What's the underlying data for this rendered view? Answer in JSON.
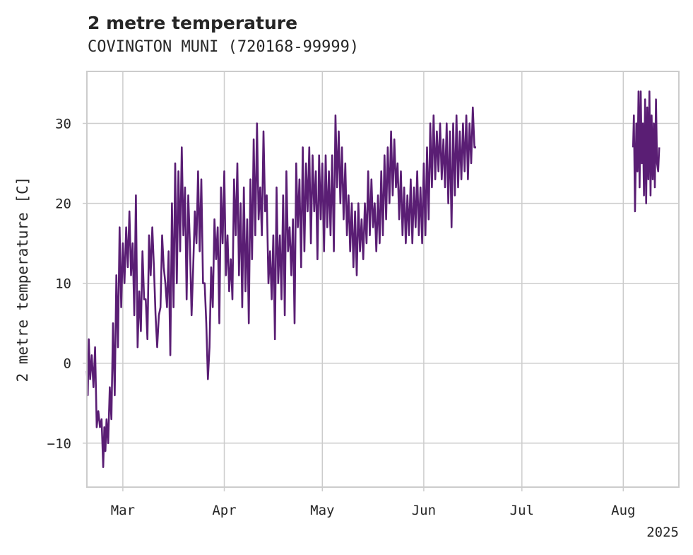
{
  "chart_data": {
    "type": "line",
    "title": "2 metre temperature",
    "subtitle": "COVINGTON MUNI (720168-99999)",
    "ylabel": "2 metre temperature [C]",
    "xlabel": "",
    "x_year_label": "2025",
    "ylim": [
      -15.5,
      36.5
    ],
    "xlim": [
      "2025-02-18",
      "2025-08-18"
    ],
    "grid": true,
    "y_ticks": [
      -10,
      0,
      10,
      20,
      30
    ],
    "x_ticks": [
      {
        "date": "2025-03-01",
        "label": "Mar"
      },
      {
        "date": "2025-04-01",
        "label": "Apr"
      },
      {
        "date": "2025-05-01",
        "label": "May"
      },
      {
        "date": "2025-06-01",
        "label": "Jun"
      },
      {
        "date": "2025-07-01",
        "label": "Jul"
      },
      {
        "date": "2025-08-01",
        "label": "Aug"
      }
    ],
    "color": "#5a1e74",
    "series": [
      {
        "points": [
          [
            "2025-02-18",
            -1
          ],
          [
            "2025-02-18T06",
            -4
          ],
          [
            "2025-02-18T14",
            3
          ],
          [
            "2025-02-19",
            -2
          ],
          [
            "2025-02-19T12",
            1
          ],
          [
            "2025-02-20",
            -3
          ],
          [
            "2025-02-20T12",
            2
          ],
          [
            "2025-02-21",
            -8
          ],
          [
            "2025-02-21T12",
            -6
          ],
          [
            "2025-02-22",
            -8
          ],
          [
            "2025-02-22T12",
            -7
          ],
          [
            "2025-02-23",
            -13
          ],
          [
            "2025-02-23T08",
            -8
          ],
          [
            "2025-02-23T16",
            -11
          ],
          [
            "2025-02-24",
            -7
          ],
          [
            "2025-02-24T12",
            -10
          ],
          [
            "2025-02-25",
            -3
          ],
          [
            "2025-02-25T12",
            -7
          ],
          [
            "2025-02-26",
            5
          ],
          [
            "2025-02-26T12",
            -4
          ],
          [
            "2025-02-27",
            11
          ],
          [
            "2025-02-27T12",
            2
          ],
          [
            "2025-02-28",
            17
          ],
          [
            "2025-02-28T12",
            7
          ],
          [
            "2025-03-01",
            15
          ],
          [
            "2025-03-01T12",
            10
          ],
          [
            "2025-03-02",
            17
          ],
          [
            "2025-03-02T12",
            12
          ],
          [
            "2025-03-03",
            19
          ],
          [
            "2025-03-03T12",
            11
          ],
          [
            "2025-03-04",
            15
          ],
          [
            "2025-03-04T12",
            6
          ],
          [
            "2025-03-05",
            21
          ],
          [
            "2025-03-05T12",
            2
          ],
          [
            "2025-03-06",
            9
          ],
          [
            "2025-03-06T12",
            4
          ],
          [
            "2025-03-07",
            14
          ],
          [
            "2025-03-07T12",
            8
          ],
          [
            "2025-03-08",
            8
          ],
          [
            "2025-03-08T12",
            3
          ],
          [
            "2025-03-09",
            16
          ],
          [
            "2025-03-09T12",
            11
          ],
          [
            "2025-03-10",
            17
          ],
          [
            "2025-03-10T12",
            12
          ],
          [
            "2025-03-11",
            6
          ],
          [
            "2025-03-11T12",
            2
          ],
          [
            "2025-03-12",
            6
          ],
          [
            "2025-03-12T12",
            7
          ],
          [
            "2025-03-13",
            16
          ],
          [
            "2025-03-13T12",
            12
          ],
          [
            "2025-03-14",
            10
          ],
          [
            "2025-03-14T12",
            7
          ],
          [
            "2025-03-15",
            14
          ],
          [
            "2025-03-15T12",
            1
          ],
          [
            "2025-03-16",
            20
          ],
          [
            "2025-03-16T12",
            7
          ],
          [
            "2025-03-17",
            25
          ],
          [
            "2025-03-17T12",
            10
          ],
          [
            "2025-03-18",
            24
          ],
          [
            "2025-03-18T12",
            14
          ],
          [
            "2025-03-19",
            27
          ],
          [
            "2025-03-19T12",
            16
          ],
          [
            "2025-03-20",
            22
          ],
          [
            "2025-03-20T12",
            8
          ],
          [
            "2025-03-21",
            21
          ],
          [
            "2025-03-21T12",
            15
          ],
          [
            "2025-03-22",
            6
          ],
          [
            "2025-03-22T12",
            12
          ],
          [
            "2025-03-23",
            19
          ],
          [
            "2025-03-23T12",
            15
          ],
          [
            "2025-03-24",
            24
          ],
          [
            "2025-03-24T12",
            14
          ],
          [
            "2025-03-25",
            23
          ],
          [
            "2025-03-25T12",
            10
          ],
          [
            "2025-03-26",
            10
          ],
          [
            "2025-03-26T12",
            5
          ],
          [
            "2025-03-27",
            -2
          ],
          [
            "2025-03-27T12",
            2
          ],
          [
            "2025-03-28",
            12
          ],
          [
            "2025-03-28T12",
            7
          ],
          [
            "2025-03-29",
            18
          ],
          [
            "2025-03-29T12",
            13
          ],
          [
            "2025-03-30",
            17
          ],
          [
            "2025-03-30T12",
            5
          ],
          [
            "2025-03-31",
            22
          ],
          [
            "2025-03-31T12",
            15
          ],
          [
            "2025-04-01",
            24
          ],
          [
            "2025-04-01T12",
            11
          ],
          [
            "2025-04-02",
            16
          ],
          [
            "2025-04-02T12",
            9
          ],
          [
            "2025-04-03",
            13
          ],
          [
            "2025-04-03T12",
            8
          ],
          [
            "2025-04-04",
            23
          ],
          [
            "2025-04-04T12",
            16
          ],
          [
            "2025-04-05",
            25
          ],
          [
            "2025-04-05T12",
            11
          ],
          [
            "2025-04-06",
            20
          ],
          [
            "2025-04-06T12",
            7
          ],
          [
            "2025-04-07",
            22
          ],
          [
            "2025-04-07T12",
            9
          ],
          [
            "2025-04-08",
            18
          ],
          [
            "2025-04-08T12",
            5
          ],
          [
            "2025-04-09",
            23
          ],
          [
            "2025-04-09T12",
            13
          ],
          [
            "2025-04-10",
            28
          ],
          [
            "2025-04-10T12",
            16
          ],
          [
            "2025-04-11",
            30
          ],
          [
            "2025-04-11T12",
            18
          ],
          [
            "2025-04-12",
            22
          ],
          [
            "2025-04-12T12",
            16
          ],
          [
            "2025-04-13",
            29
          ],
          [
            "2025-04-13T12",
            19
          ],
          [
            "2025-04-14",
            21
          ],
          [
            "2025-04-14T12",
            10
          ],
          [
            "2025-04-15",
            14
          ],
          [
            "2025-04-15T12",
            8
          ],
          [
            "2025-04-16",
            16
          ],
          [
            "2025-04-16T12",
            3
          ],
          [
            "2025-04-17",
            22
          ],
          [
            "2025-04-17T12",
            10
          ],
          [
            "2025-04-18",
            16
          ],
          [
            "2025-04-18T12",
            8
          ],
          [
            "2025-04-19",
            21
          ],
          [
            "2025-04-19T12",
            6
          ],
          [
            "2025-04-20",
            24
          ],
          [
            "2025-04-20T12",
            14
          ],
          [
            "2025-04-21",
            17
          ],
          [
            "2025-04-21T12",
            11
          ],
          [
            "2025-04-22",
            18
          ],
          [
            "2025-04-22T12",
            5
          ],
          [
            "2025-04-23",
            25
          ],
          [
            "2025-04-23T12",
            17
          ],
          [
            "2025-04-24",
            23
          ],
          [
            "2025-04-24T12",
            12
          ],
          [
            "2025-04-25",
            27
          ],
          [
            "2025-04-25T12",
            14
          ],
          [
            "2025-04-26",
            25
          ],
          [
            "2025-04-26T12",
            19
          ],
          [
            "2025-04-27",
            27
          ],
          [
            "2025-04-27T12",
            15
          ],
          [
            "2025-04-28",
            26
          ],
          [
            "2025-04-28T12",
            19
          ],
          [
            "2025-04-29",
            24
          ],
          [
            "2025-04-29T12",
            13
          ],
          [
            "2025-04-30",
            26
          ],
          [
            "2025-04-30T12",
            18
          ],
          [
            "2025-05-01",
            25
          ],
          [
            "2025-05-01T12",
            14
          ],
          [
            "2025-05-02",
            26
          ],
          [
            "2025-05-02T12",
            17
          ],
          [
            "2025-05-03",
            24
          ],
          [
            "2025-05-03T12",
            16
          ],
          [
            "2025-05-04",
            26
          ],
          [
            "2025-05-04T12",
            14
          ],
          [
            "2025-05-05",
            31
          ],
          [
            "2025-05-05T12",
            22
          ],
          [
            "2025-05-06",
            29
          ],
          [
            "2025-05-06T12",
            20
          ],
          [
            "2025-05-07",
            27
          ],
          [
            "2025-05-07T12",
            18
          ],
          [
            "2025-05-08",
            25
          ],
          [
            "2025-05-08T12",
            16
          ],
          [
            "2025-05-09",
            21
          ],
          [
            "2025-05-09T12",
            14
          ],
          [
            "2025-05-10",
            20
          ],
          [
            "2025-05-10T12",
            12
          ],
          [
            "2025-05-11",
            19
          ],
          [
            "2025-05-11T12",
            11
          ],
          [
            "2025-05-12",
            20
          ],
          [
            "2025-05-12T12",
            14
          ],
          [
            "2025-05-13",
            18
          ],
          [
            "2025-05-13T12",
            13
          ],
          [
            "2025-05-14",
            20
          ],
          [
            "2025-05-14T12",
            15
          ],
          [
            "2025-05-15",
            24
          ],
          [
            "2025-05-15T12",
            16
          ],
          [
            "2025-05-16",
            23
          ],
          [
            "2025-05-16T12",
            17
          ],
          [
            "2025-05-17",
            20
          ],
          [
            "2025-05-17T12",
            14
          ],
          [
            "2025-05-18",
            21
          ],
          [
            "2025-05-18T12",
            15
          ],
          [
            "2025-05-19",
            24
          ],
          [
            "2025-05-19T12",
            16
          ],
          [
            "2025-05-20",
            26
          ],
          [
            "2025-05-20T12",
            18
          ],
          [
            "2025-05-21",
            27
          ],
          [
            "2025-05-21T12",
            20
          ],
          [
            "2025-05-22",
            29
          ],
          [
            "2025-05-22T12",
            21
          ],
          [
            "2025-05-23",
            28
          ],
          [
            "2025-05-23T12",
            22
          ],
          [
            "2025-05-24",
            25
          ],
          [
            "2025-05-24T12",
            18
          ],
          [
            "2025-05-25",
            24
          ],
          [
            "2025-05-25T12",
            16
          ],
          [
            "2025-05-26",
            22
          ],
          [
            "2025-05-26T12",
            15
          ],
          [
            "2025-05-27",
            21
          ],
          [
            "2025-05-27T12",
            16
          ],
          [
            "2025-05-28",
            23
          ],
          [
            "2025-05-28T12",
            15
          ],
          [
            "2025-05-29",
            22
          ],
          [
            "2025-05-29T12",
            17
          ],
          [
            "2025-05-30",
            24
          ],
          [
            "2025-05-30T12",
            16
          ],
          [
            "2025-05-31",
            22
          ],
          [
            "2025-05-31T12",
            15
          ],
          [
            "2025-06-01",
            25
          ],
          [
            "2025-06-01T12",
            16
          ],
          [
            "2025-06-02",
            27
          ],
          [
            "2025-06-02T12",
            18
          ],
          [
            "2025-06-03",
            30
          ],
          [
            "2025-06-03T12",
            22
          ],
          [
            "2025-06-04",
            31
          ],
          [
            "2025-06-04T12",
            23
          ],
          [
            "2025-06-05",
            29
          ],
          [
            "2025-06-05T12",
            24
          ],
          [
            "2025-06-06",
            30
          ],
          [
            "2025-06-06T12",
            23
          ],
          [
            "2025-06-07",
            28
          ],
          [
            "2025-06-07T12",
            22
          ],
          [
            "2025-06-08",
            30
          ],
          [
            "2025-06-08T12",
            20
          ],
          [
            "2025-06-09",
            29
          ],
          [
            "2025-06-09T12",
            17
          ],
          [
            "2025-06-10",
            30
          ],
          [
            "2025-06-10T12",
            21
          ],
          [
            "2025-06-11",
            31
          ],
          [
            "2025-06-11T12",
            22
          ],
          [
            "2025-06-12",
            29
          ],
          [
            "2025-06-12T12",
            23
          ],
          [
            "2025-06-13",
            30
          ],
          [
            "2025-06-13T12",
            24
          ],
          [
            "2025-06-14",
            31
          ],
          [
            "2025-06-14T12",
            23
          ],
          [
            "2025-06-15",
            30
          ],
          [
            "2025-06-15T12",
            25
          ],
          [
            "2025-06-16",
            32
          ],
          [
            "2025-06-16T12",
            27
          ],
          [
            "2025-06-17",
            27
          ]
        ]
      },
      {
        "points": [
          [
            "2025-08-04",
            27
          ],
          [
            "2025-08-04T06",
            31
          ],
          [
            "2025-08-04T14",
            19
          ],
          [
            "2025-08-05",
            30
          ],
          [
            "2025-08-05T08",
            24
          ],
          [
            "2025-08-05T16",
            34
          ],
          [
            "2025-08-06",
            22
          ],
          [
            "2025-08-06T08",
            34
          ],
          [
            "2025-08-06T16",
            25
          ],
          [
            "2025-08-07",
            30
          ],
          [
            "2025-08-07T08",
            21
          ],
          [
            "2025-08-07T16",
            33
          ],
          [
            "2025-08-08",
            20
          ],
          [
            "2025-08-08T08",
            32
          ],
          [
            "2025-08-08T16",
            23
          ],
          [
            "2025-08-09",
            34
          ],
          [
            "2025-08-09T08",
            21
          ],
          [
            "2025-08-09T16",
            31
          ],
          [
            "2025-08-10",
            23
          ],
          [
            "2025-08-10T08",
            30
          ],
          [
            "2025-08-10T16",
            22
          ],
          [
            "2025-08-11",
            33
          ],
          [
            "2025-08-11T08",
            25
          ],
          [
            "2025-08-11T16",
            24
          ],
          [
            "2025-08-12",
            27
          ]
        ]
      }
    ]
  }
}
